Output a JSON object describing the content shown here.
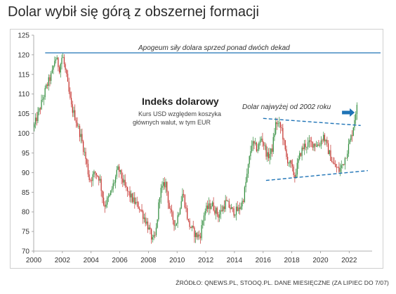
{
  "page": {
    "title": "Dolar wybił się górą z obszernej formacji",
    "source": "ŹRÓDŁO: QNEWS.PL, STOOQ.PL. DANE MIESIĘCZNE (ZA LIPIEC DO 7/07)"
  },
  "colors": {
    "up": "#2e8b3a",
    "down": "#c4302b",
    "resistance_line": "#1e73b6",
    "trend_lines": "#1e73b6",
    "arrow": "#1e73b6",
    "axis": "#999999"
  },
  "chart_data": {
    "type": "candlestick",
    "title": "Indeks dolarowy",
    "subtitle": [
      "Kurs USD względem koszyka",
      "głównych walut, w tym EUR"
    ],
    "xlabel": "",
    "ylabel": "",
    "xlim": [
      2000,
      2023.6
    ],
    "ylim": [
      70,
      125
    ],
    "xticks": [
      "2000",
      "2002",
      "2004",
      "2006",
      "2008",
      "2010",
      "2012",
      "2014",
      "2016",
      "2018",
      "2020",
      "2022"
    ],
    "yticks": [
      "70",
      "75",
      "80",
      "85",
      "90",
      "95",
      "100",
      "105",
      "110",
      "115",
      "120",
      "125"
    ],
    "grid": false,
    "annotations": {
      "apogee": "Apogeum siły dolara sprzed ponad dwóch dekad",
      "recent_high": "Dolar najwyżej od 2002 roku"
    },
    "apogee_level": 120.5,
    "trend_upper": {
      "x": [
        2016.0,
        2022.8
      ],
      "y": [
        103.8,
        102.0
      ]
    },
    "trend_lower": {
      "x": [
        2016.2,
        2023.3
      ],
      "y": [
        88.0,
        90.5
      ]
    },
    "anchors": {
      "x": [
        2000.0,
        2000.4,
        2000.9,
        2001.3,
        2001.5,
        2001.8,
        2002.0,
        2002.3,
        2002.6,
        2002.9,
        2003.3,
        2003.6,
        2003.9,
        2004.3,
        2004.6,
        2004.9,
        2005.3,
        2005.9,
        2006.4,
        2006.9,
        2007.4,
        2007.9,
        2008.3,
        2008.5,
        2008.8,
        2009.2,
        2009.5,
        2009.9,
        2010.4,
        2010.8,
        2011.3,
        2011.6,
        2011.9,
        2012.4,
        2012.9,
        2013.4,
        2013.9,
        2014.3,
        2014.6,
        2014.9,
        2015.2,
        2015.6,
        2015.9,
        2016.3,
        2016.6,
        2016.9,
        2017.3,
        2017.6,
        2017.9,
        2018.2,
        2018.6,
        2018.9,
        2019.4,
        2019.9,
        2020.2,
        2020.5,
        2020.9,
        2021.3,
        2021.6,
        2021.9,
        2022.2,
        2022.5
      ],
      "y": [
        101.5,
        106.0,
        112.0,
        115.5,
        119.5,
        116.5,
        120.0,
        114.0,
        107.0,
        104.0,
        99.0,
        94.0,
        88.0,
        90.0,
        88.5,
        81.5,
        84.0,
        91.0,
        86.0,
        83.0,
        81.0,
        77.0,
        72.5,
        74.0,
        85.0,
        87.5,
        80.0,
        76.5,
        85.0,
        77.0,
        74.0,
        73.8,
        80.0,
        82.0,
        79.0,
        82.5,
        80.0,
        80.5,
        83.0,
        90.0,
        97.5,
        96.0,
        99.0,
        94.0,
        95.5,
        103.0,
        101.0,
        94.0,
        92.0,
        89.0,
        95.0,
        97.0,
        97.5,
        97.0,
        99.5,
        96.0,
        92.0,
        90.5,
        92.5,
        96.0,
        100.0,
        106.5
      ]
    },
    "months": 271
  }
}
